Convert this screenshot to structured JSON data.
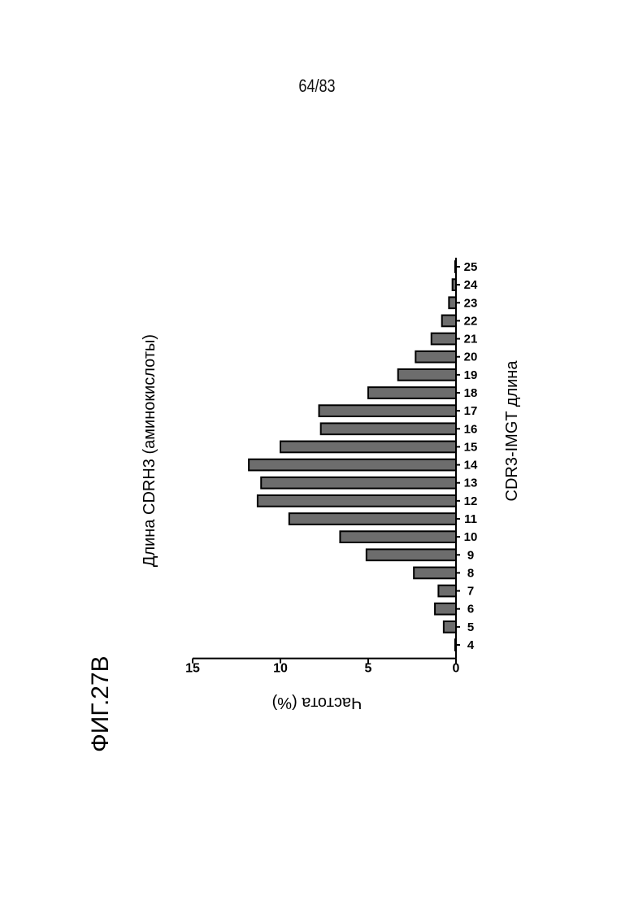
{
  "page_number": "64/83",
  "figure_label": "ФИГ.27B",
  "chart_data": {
    "type": "bar",
    "title": "Длина CDRH3 (аминокислоты)",
    "xlabel": "CDR3-IMGT длина",
    "ylabel": "Частота (%)",
    "ylim": [
      0,
      15
    ],
    "yticks": [
      "0",
      "5",
      "10",
      "15"
    ],
    "categories": [
      "4",
      "5",
      "6",
      "7",
      "8",
      "9",
      "10",
      "11",
      "12",
      "13",
      "14",
      "15",
      "16",
      "17",
      "18",
      "19",
      "20",
      "21",
      "22",
      "23",
      "24",
      "25"
    ],
    "values": [
      0.05,
      0.7,
      1.2,
      1.0,
      2.4,
      5.1,
      6.6,
      9.5,
      11.3,
      11.1,
      11.8,
      10.0,
      7.7,
      7.8,
      5.0,
      3.3,
      2.3,
      1.4,
      0.8,
      0.4,
      0.2,
      0.05
    ],
    "grid": false,
    "legend": false
  }
}
